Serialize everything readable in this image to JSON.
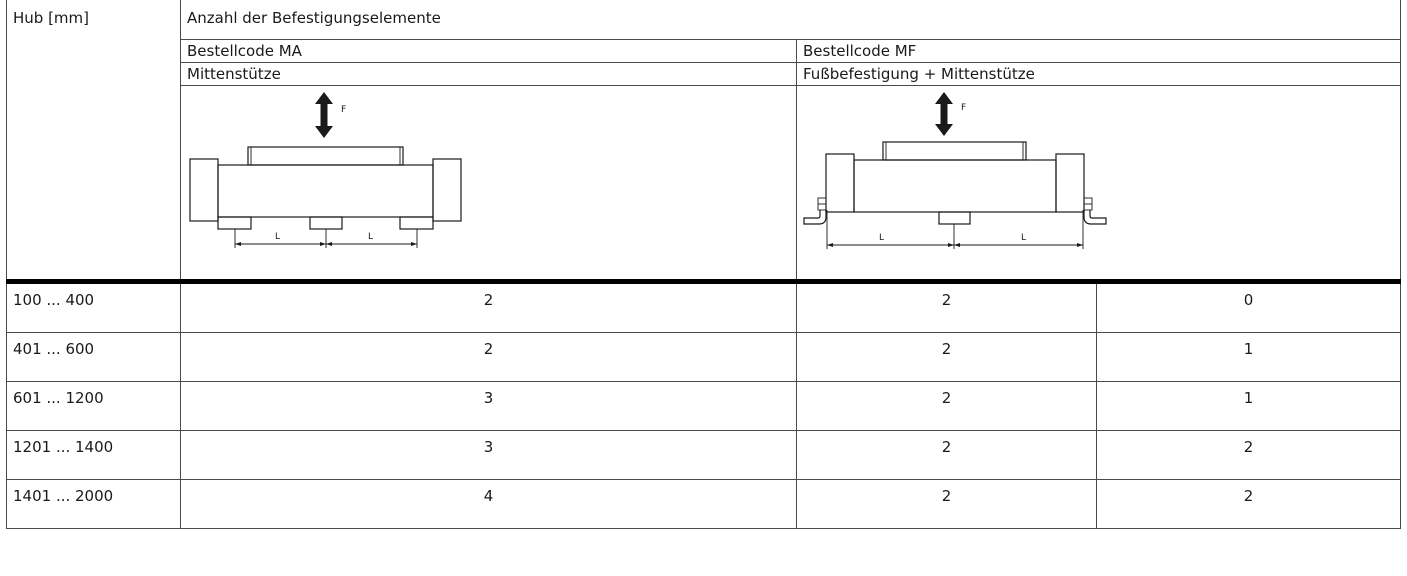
{
  "header": {
    "hub_label": "Hub [mm]",
    "anzahl_label": "Anzahl der Befestigungselemente",
    "code_ma": "Bestellcode MA",
    "code_mf": "Bestellcode MF",
    "desc_ma": "Mittenstütze",
    "desc_mf": "Fußbefestigung + Mittenstütze"
  },
  "drawings": {
    "force_label": "F",
    "dim_label": "L"
  },
  "rows": [
    {
      "hub": "100 ... 400",
      "ma": "2",
      "mf_fuss": "2",
      "mf_mitte": "0"
    },
    {
      "hub": "401 ... 600",
      "ma": "2",
      "mf_fuss": "2",
      "mf_mitte": "1"
    },
    {
      "hub": "601 ... 1200",
      "ma": "3",
      "mf_fuss": "2",
      "mf_mitte": "1"
    },
    {
      "hub": "1201 ... 1400",
      "ma": "3",
      "mf_fuss": "2",
      "mf_mitte": "2"
    },
    {
      "hub": "1401 ... 2000",
      "ma": "4",
      "mf_fuss": "2",
      "mf_mitte": "2"
    }
  ]
}
